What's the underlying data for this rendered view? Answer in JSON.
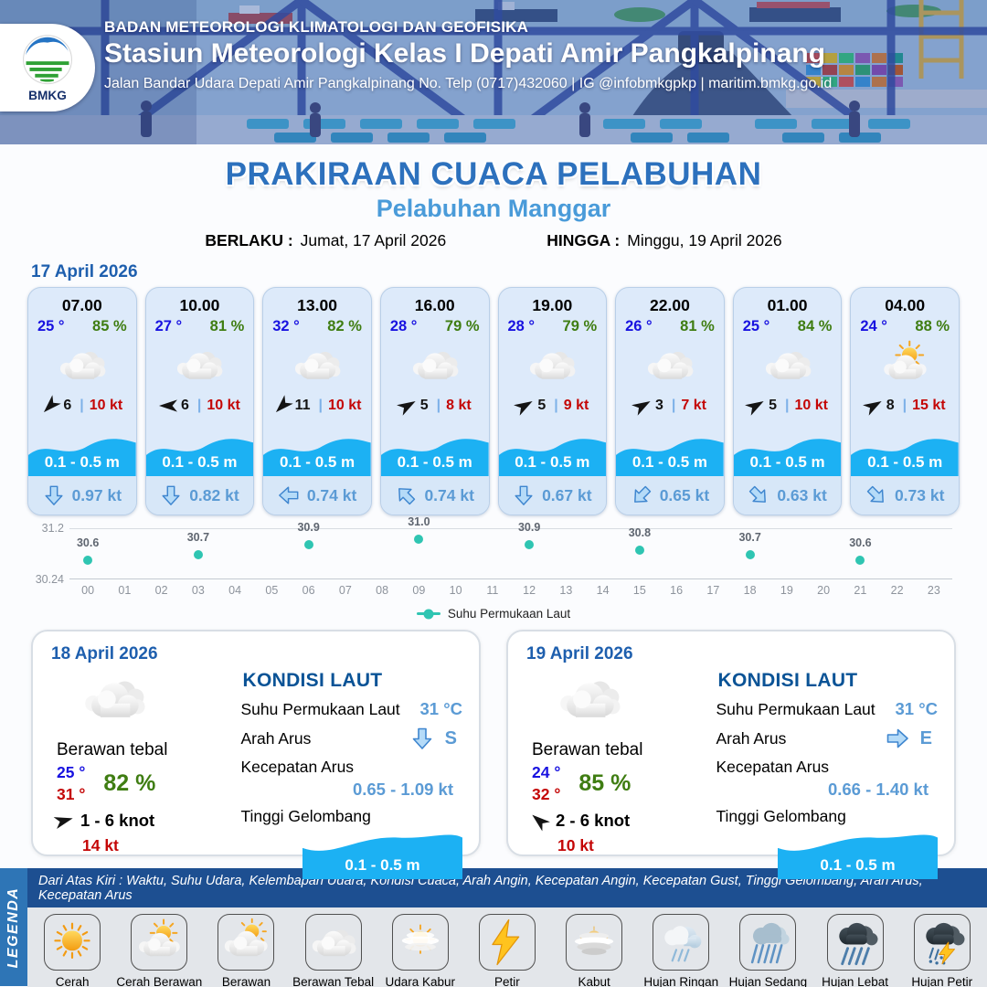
{
  "header": {
    "org": "BADAN METEOROLOGI KLIMATOLOGI DAN GEOFISIKA",
    "station": "Stasiun Meteorologi Kelas I Depati Amir Pangkalpinang",
    "address": "Jalan Bandar Udara Depati Amir Pangkalpinang No. Telp (0717)432060 | IG @infobmkgpkp | maritim.bmkg.go.id",
    "logo_text": "BMKG"
  },
  "title": {
    "main": "PRAKIRAAN CUACA PELABUHAN",
    "port": "Pelabuhan Manggar",
    "valid_from_label": "BERLAKU :",
    "valid_from": "Jumat, 17 April 2026",
    "valid_to_label": "HINGGA :",
    "valid_to": "Minggu, 19 April 2026"
  },
  "forecast_date": "17 April 2026",
  "strings": {
    "pipe": "|"
  },
  "colors": {
    "accent_blue": "#1e5fae",
    "light_blue": "#5b9bd5",
    "temp_blue": "#1812e0",
    "humidity_green": "#3f7d12",
    "gust_red": "#c40606",
    "wave_cyan": "#1cb1f3",
    "sst_teal": "#2fc5b2",
    "legend_bar": "#1d4f91",
    "legend_band": "#2e75b6"
  },
  "cards": [
    {
      "time": "07.00",
      "temp": "25 °",
      "hum": "85 %",
      "icon": "berawan-tebal",
      "wind": "6",
      "gust": "10 kt",
      "wind_deg": 135,
      "wave": "0.1 - 0.5 m",
      "cur": "0.97 kt",
      "cur_dir": "S",
      "cur_deg": 0
    },
    {
      "time": "10.00",
      "temp": "27 °",
      "hum": "81 %",
      "icon": "berawan-tebal",
      "wind": "6",
      "gust": "10 kt",
      "wind_deg": 180,
      "wave": "0.1 - 0.5 m",
      "cur": "0.82 kt",
      "cur_dir": "S",
      "cur_deg": 0
    },
    {
      "time": "13.00",
      "temp": "32 °",
      "hum": "82 %",
      "icon": "berawan-tebal",
      "wind": "11",
      "gust": "10 kt",
      "wind_deg": 135,
      "wave": "0.1 - 0.5 m",
      "cur": "0.74 kt",
      "cur_dir": "W",
      "cur_deg": 90
    },
    {
      "time": "16.00",
      "temp": "28 °",
      "hum": "79 %",
      "icon": "berawan-tebal",
      "wind": "5",
      "gust": "8 kt",
      "wind_deg": -30,
      "wave": "0.1 - 0.5 m",
      "cur": "0.74 kt",
      "cur_dir": "NW",
      "cur_deg": 135
    },
    {
      "time": "19.00",
      "temp": "28 °",
      "hum": "79 %",
      "icon": "berawan-tebal",
      "wind": "5",
      "gust": "9 kt",
      "wind_deg": -30,
      "wave": "0.1 - 0.5 m",
      "cur": "0.67 kt",
      "cur_dir": "S",
      "cur_deg": 0
    },
    {
      "time": "22.00",
      "temp": "26 °",
      "hum": "81 %",
      "icon": "berawan-tebal",
      "wind": "3",
      "gust": "7 kt",
      "wind_deg": -30,
      "wave": "0.1 - 0.5 m",
      "cur": "0.65 kt",
      "cur_dir": "SW",
      "cur_deg": 45
    },
    {
      "time": "01.00",
      "temp": "25 °",
      "hum": "84 %",
      "icon": "berawan-tebal",
      "wind": "5",
      "gust": "10 kt",
      "wind_deg": -30,
      "wave": "0.1 - 0.5 m",
      "cur": "0.63 kt",
      "cur_dir": "SE",
      "cur_deg": -45
    },
    {
      "time": "04.00",
      "temp": "24 °",
      "hum": "88 %",
      "icon": "cerah-berawan",
      "wind": "8",
      "gust": "15 kt",
      "wind_deg": -30,
      "wave": "0.1 - 0.5 m",
      "cur": "0.73 kt",
      "cur_dir": "SE",
      "cur_deg": -45
    }
  ],
  "chart_data": {
    "type": "line",
    "legend": "Suhu Permukaan Laut",
    "legend_position": "bottom",
    "series": [
      {
        "name": "Suhu Permukaan Laut",
        "x": [
          0,
          3,
          6,
          9,
          12,
          15,
          18,
          21
        ],
        "values": [
          30.6,
          30.7,
          30.9,
          31.0,
          30.9,
          30.8,
          30.7,
          30.6
        ]
      }
    ],
    "x_ticks": [
      "00",
      "01",
      "02",
      "03",
      "04",
      "05",
      "06",
      "07",
      "08",
      "09",
      "10",
      "11",
      "12",
      "13",
      "14",
      "15",
      "16",
      "17",
      "18",
      "19",
      "20",
      "21",
      "22",
      "23"
    ],
    "ylim": [
      30.24,
      31.2
    ],
    "y_tick_labels": [
      "31.2",
      "30.24"
    ],
    "grid": "top-and-bottom-only",
    "marker_color": "#2fc5b2"
  },
  "day_cards": [
    {
      "date": "18 April 2026",
      "icon": "berawan-tebal",
      "condition": "Berawan tebal",
      "tmin": "25 °",
      "tmax": "31 °",
      "hum": "82 %",
      "wind": "1 - 6 knot",
      "gust": "14 kt",
      "wind_deg": -15,
      "sea_title": "KONDISI LAUT",
      "sst_label": "Suhu Permukaan Laut",
      "sst": "31 °C",
      "dir_label": "Arah Arus",
      "dir": "S",
      "dir_deg": 0,
      "spd_label": "Kecepatan Arus",
      "spd": "0.65  - 1.09 kt",
      "wave_label": "Tinggi Gelombang",
      "wave": "0.1 - 0.5 m"
    },
    {
      "date": "19 April 2026",
      "icon": "berawan-tebal",
      "condition": "Berawan tebal",
      "tmin": "24 °",
      "tmax": "32 °",
      "hum": "85 %",
      "wind": "2 - 6 knot",
      "gust": "10 kt",
      "wind_deg": -140,
      "sea_title": "KONDISI LAUT",
      "sst_label": "Suhu Permukaan Laut",
      "sst": "31 °C",
      "dir_label": "Arah Arus",
      "dir": "E",
      "dir_deg": -90,
      "spd_label": "Kecepatan Arus",
      "spd": "0.66  - 1.40 kt",
      "wave_label": "Tinggi Gelombang",
      "wave": "0.1 - 0.5 m"
    }
  ],
  "legend": {
    "band": "LEGENDA",
    "caption": "Dari Atas Kiri : Waktu, Suhu Udara, Kelembapan Udara, Kondisi Cuaca, Arah Angin, Kecepatan Angin, Kecepatan Gust, Tinggi Gelombang, Arah Arus, Kecepatan Arus",
    "items": [
      {
        "label": "Cerah",
        "icon": "cerah"
      },
      {
        "label": "Cerah Berawan",
        "icon": "cerah-berawan"
      },
      {
        "label": "Berawan",
        "icon": "berawan"
      },
      {
        "label": "Berawan Tebal",
        "icon": "berawan-tebal"
      },
      {
        "label": "Udara Kabur",
        "icon": "udara-kabur"
      },
      {
        "label": "Petir",
        "icon": "petir"
      },
      {
        "label": "Kabut",
        "icon": "kabut"
      },
      {
        "label": "Hujan Ringan",
        "icon": "hujan-ringan"
      },
      {
        "label": "Hujan Sedang",
        "icon": "hujan-sedang"
      },
      {
        "label": "Hujan Lebat",
        "icon": "hujan-lebat"
      },
      {
        "label": "Hujan Petir",
        "icon": "hujan-petir"
      }
    ]
  }
}
